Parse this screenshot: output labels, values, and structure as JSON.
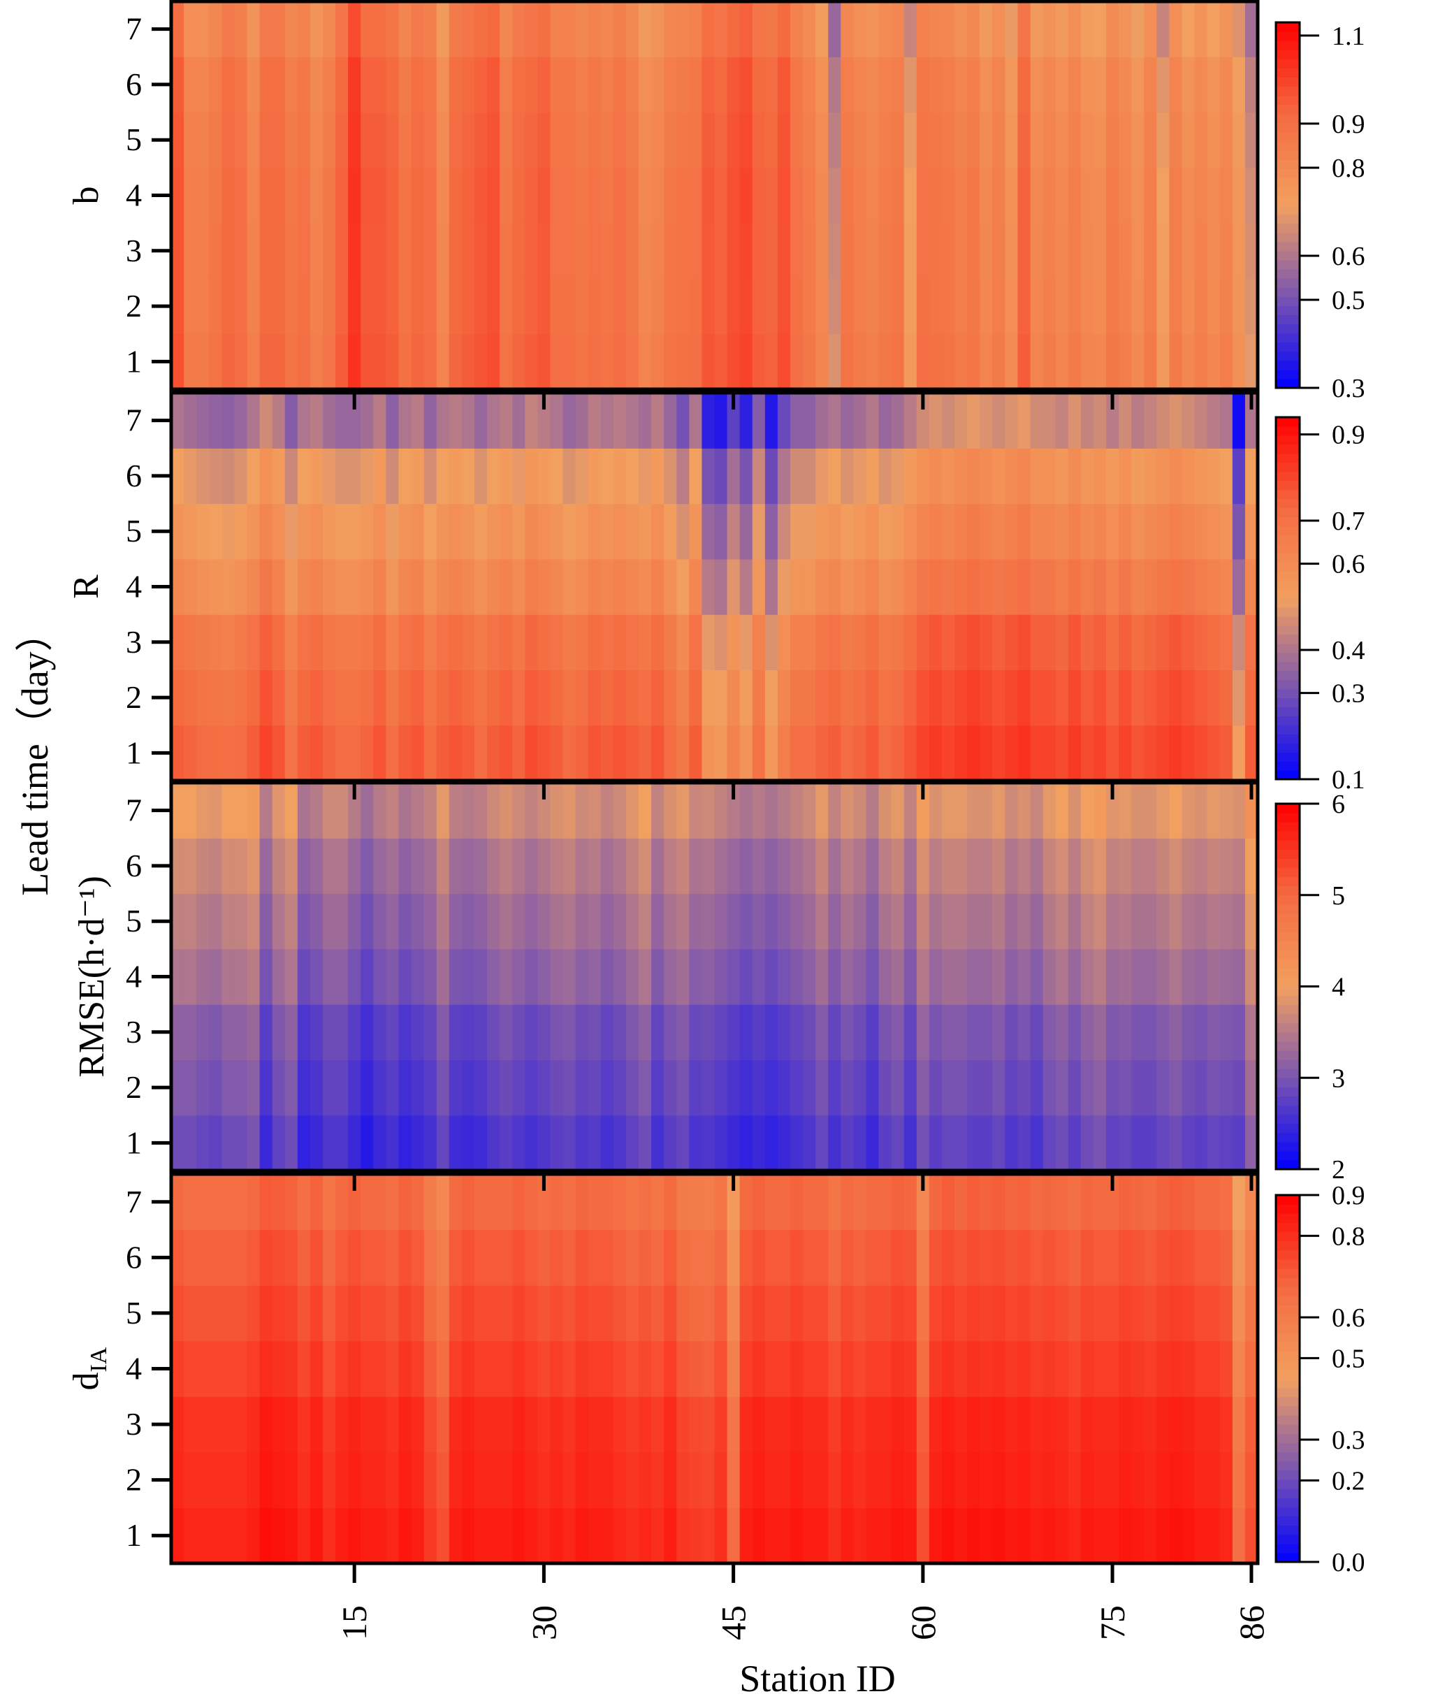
{
  "chart_data": {
    "type": "heatmap",
    "title": "",
    "xlabel": "Station ID",
    "ylabel": "Lead time（day）",
    "x_ticks": [
      15,
      30,
      45,
      60,
      75,
      86
    ],
    "x_range": [
      1,
      86
    ],
    "y_ticks": [
      1,
      2,
      3,
      4,
      5,
      6,
      7
    ],
    "colormap": [
      "#0000ff",
      "#7a55b0",
      "#f2a060",
      "#f46a40",
      "#ff0000"
    ],
    "panels": [
      {
        "name": "b",
        "ylabel": "b",
        "colorbar": {
          "ticks": [
            "0.3",
            "0.5",
            "0.6",
            "0.8",
            "0.9",
            "1.1"
          ],
          "tick_values": [
            0.3,
            0.5,
            0.6,
            0.8,
            0.9,
            1.1
          ],
          "range": [
            0.3,
            1.13
          ]
        },
        "row_base": [
          0.93,
          0.92,
          0.92,
          0.92,
          0.91,
          0.9,
          0.86
        ],
        "station_offset": [
          0.05,
          -0.08,
          -0.08,
          -0.05,
          0,
          -0.02,
          -0.1,
          0,
          0,
          -0.05,
          -0.03,
          -0.1,
          -0.06,
          0.02,
          0.12,
          0.04,
          0.04,
          0.02,
          -0.04,
          0,
          -0.02,
          -0.12,
          0,
          0.02,
          0.04,
          0.06,
          -0.05,
          0,
          0.02,
          0.04,
          -0.03,
          -0.03,
          -0.05,
          -0.03,
          -0.05,
          -0.02,
          -0.06,
          -0.12,
          -0.1,
          -0.05,
          -0.04,
          -0.03,
          0.04,
          0.02,
          0.06,
          0.08,
          0.02,
          0.01,
          0.06,
          -0.03,
          -0.07,
          -0.13,
          -0.3,
          -0.05,
          -0.08,
          -0.1,
          -0.07,
          -0.05,
          -0.22,
          -0.03,
          -0.04,
          -0.05,
          -0.08,
          -0.06,
          -0.12,
          -0.08,
          -0.16,
          0.02,
          -0.12,
          -0.09,
          -0.12,
          -0.08,
          -0.13,
          -0.14,
          -0.07,
          -0.1,
          -0.15,
          -0.08,
          -0.22,
          -0.08,
          -0.14,
          -0.1,
          -0.14,
          -0.1,
          -0.18,
          -0.28
        ]
      },
      {
        "name": "R",
        "ylabel": "R",
        "colorbar": {
          "ticks": [
            "0.1",
            "0.3",
            "0.4",
            "0.6",
            "0.7",
            "0.9"
          ],
          "tick_values": [
            0.1,
            0.3,
            0.4,
            0.6,
            0.7,
            0.9
          ],
          "range": [
            0.1,
            0.94
          ]
        },
        "row_base": [
          0.74,
          0.71,
          0.68,
          0.6,
          0.55,
          0.5,
          0.38
        ],
        "station_offset": [
          0.02,
          0,
          -0.02,
          -0.03,
          -0.04,
          -0.02,
          0.02,
          0.08,
          0.04,
          -0.05,
          0.02,
          0.04,
          0,
          -0.02,
          -0.02,
          0,
          0.04,
          -0.04,
          0.02,
          0.04,
          -0.03,
          0.02,
          0.04,
          0.02,
          -0.02,
          0.02,
          0.04,
          0,
          0.06,
          0.04,
          0.02,
          -0.02,
          0,
          0.04,
          0.02,
          0.04,
          0.02,
          0,
          0.04,
          -0.02,
          -0.08,
          0.02,
          -0.2,
          -0.22,
          -0.12,
          -0.2,
          -0.05,
          -0.22,
          -0.1,
          -0.04,
          -0.04,
          0,
          0.02,
          -0.02,
          0,
          0.03,
          -0.02,
          0,
          0.04,
          0.08,
          0.1,
          0.08,
          0.1,
          0.12,
          0.1,
          0.08,
          0.1,
          0.12,
          0.08,
          0.08,
          0.06,
          0.1,
          0.06,
          0.08,
          0.04,
          0.08,
          0.04,
          0.06,
          0.08,
          0.1,
          0.08,
          0.06,
          0.04,
          0.02,
          -0.25,
          0.02
        ]
      },
      {
        "name": "RMSE",
        "ylabel": "RMSE(h·d⁻¹)",
        "colorbar": {
          "ticks": [
            "2",
            "3",
            "4",
            "5",
            "6"
          ],
          "tick_values": [
            2,
            3,
            4,
            5,
            6
          ],
          "range": [
            2,
            6
          ]
        },
        "row_base": [
          2.65,
          2.8,
          2.9,
          3.15,
          3.3,
          3.45,
          3.7
        ],
        "station_offset": [
          0.3,
          0.3,
          0.2,
          0.15,
          0.3,
          0.3,
          0.4,
          -0.2,
          0.15,
          0.3,
          -0.3,
          -0.2,
          0,
          0,
          -0.2,
          -0.4,
          -0.2,
          -0.1,
          -0.3,
          -0.2,
          -0.1,
          0.2,
          -0.15,
          -0.2,
          -0.15,
          0,
          0.1,
          0,
          -0.1,
          0,
          0.1,
          0.15,
          0,
          0.05,
          -0.1,
          0,
          0.15,
          0.3,
          -0.1,
          0.1,
          0.2,
          -0.05,
          0,
          -0.1,
          -0.2,
          -0.3,
          -0.2,
          -0.3,
          -0.2,
          -0.1,
          0,
          0.2,
          -0.1,
          0.1,
          0,
          -0.2,
          0.1,
          0.2,
          -0.1,
          0.35,
          0.1,
          0.2,
          0.2,
          0.1,
          0.1,
          0.2,
          0,
          0.1,
          -0.05,
          0.2,
          0.3,
          0.1,
          0.3,
          0.4,
          0.15,
          0.2,
          0.1,
          0.1,
          0.2,
          0.3,
          0.15,
          0.1,
          0.2,
          0.15,
          0.1,
          0.6
        ]
      },
      {
        "name": "dIA",
        "ylabel": "dIA",
        "colorbar": {
          "ticks": [
            "0.0",
            "0.2",
            "0.3",
            "0.5",
            "0.6",
            "0.8",
            "0.9"
          ],
          "tick_values": [
            0.0,
            0.2,
            0.3,
            0.5,
            0.6,
            0.8,
            0.9
          ],
          "range": [
            0.0,
            0.9
          ]
        },
        "row_base": [
          0.82,
          0.8,
          0.79,
          0.75,
          0.72,
          0.69,
          0.65
        ],
        "station_offset": [
          0.02,
          0,
          0,
          0,
          0,
          0,
          0.02,
          0.06,
          0.05,
          0.04,
          0,
          0.04,
          -0.02,
          0.02,
          0.04,
          0.02,
          0.02,
          0,
          0.04,
          0.02,
          -0.05,
          -0.1,
          0.02,
          0.04,
          0.02,
          0.02,
          0.02,
          0.04,
          0.02,
          0,
          0.02,
          0,
          0.03,
          0.02,
          0.02,
          0,
          -0.02,
          0,
          -0.02,
          0.02,
          -0.04,
          -0.05,
          -0.06,
          -0.02,
          -0.18,
          0.02,
          0.04,
          0.02,
          0.02,
          0.04,
          0.02,
          0.02,
          -0.02,
          0.02,
          0,
          0.02,
          0.02,
          0.04,
          0.03,
          -0.1,
          0.03,
          0.05,
          0.03,
          0.05,
          0.04,
          0.05,
          0.03,
          0.04,
          0.02,
          0.03,
          0.02,
          0,
          0.03,
          0.02,
          0.02,
          0.04,
          0.03,
          0.02,
          0.04,
          0.05,
          0.04,
          0.02,
          0.02,
          0,
          -0.2,
          -0.1
        ]
      }
    ]
  }
}
